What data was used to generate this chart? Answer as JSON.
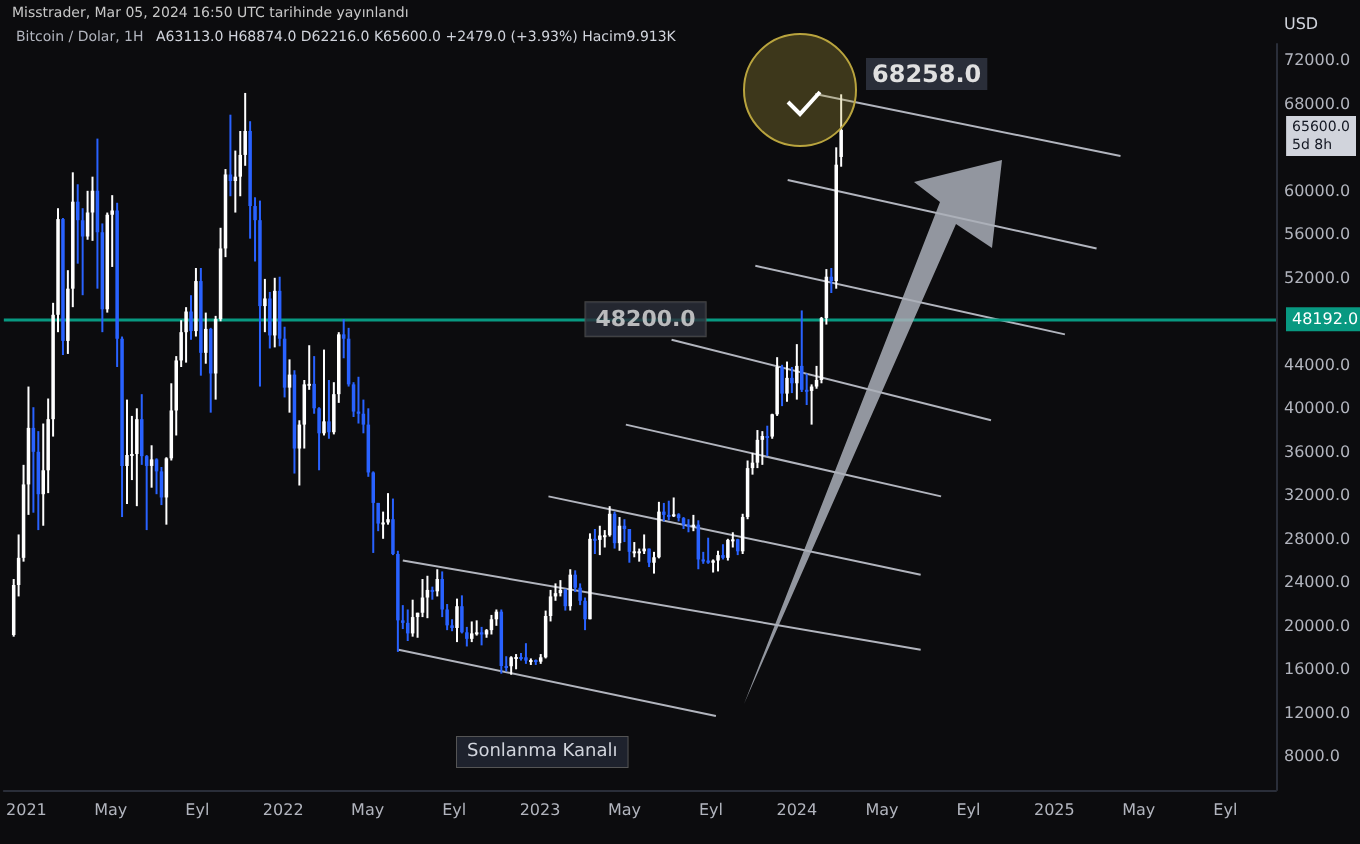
{
  "chart_data": {
    "type": "candlestick",
    "title": "Bitcoin / Dolar, 1H",
    "subtitle": "Misstrader, Mar 05, 2024 16:50 UTC tarihinde yayınlandı",
    "ylabel": "USD",
    "annotations": [
      "A63113.0 H68874.0 D62216.0 K65600.0 +2479.0 (+3.93%) Hacim9.913K",
      {
        "text": "48200.0",
        "x": "2023-05-31",
        "y": 48200
      },
      "68258.0",
      "Sonlanma Kanalı",
      "65600.0\n5d 8h"
    ],
    "colors": [
      "#ffffff",
      "#ffffff",
      "#ffffff",
      "#ffffff",
      "#2962ff",
      "#2962ff",
      "#ffffff",
      "#ffffff",
      "#ffffff",
      "#ffffff",
      "#2962ff",
      "#ffffff",
      "#ffffff",
      "#2962ff",
      "#2962ff",
      "#ffffff",
      "#ffffff",
      "#2962ff",
      "#2962ff",
      "#ffffff",
      "#ffffff",
      "#2962ff",
      "#2962ff",
      "#ffffff",
      "#ffffff",
      "#ffffff",
      "#2962ff",
      "#2962ff",
      "#ffffff",
      "#2962ff",
      "#2962ff",
      "#ffffff",
      "#ffffff",
      "#ffffff",
      "#ffffff",
      "#ffffff",
      "#2962ff",
      "#ffffff",
      "#2962ff",
      "#ffffff",
      "#2962ff",
      "#ffffff",
      "#ffffff",
      "#ffffff",
      "#2962ff",
      "#ffffff",
      "#ffffff",
      "#ffffff",
      "#2962ff",
      "#2962ff",
      "#2962ff",
      "#ffffff",
      "#2962ff",
      "#ffffff",
      "#2962ff",
      "#2962ff",
      "#ffffff",
      "#2962ff",
      "#ffffff",
      "#ffffff",
      "#ffffff",
      "#2962ff",
      "#2962ff",
      "#ffffff",
      "#2962ff",
      "#ffffff",
      "#ffffff",
      "#2962ff",
      "#2962ff",
      "#2962ff",
      "#2962ff",
      "#2962ff",
      "#2962ff",
      "#2962ff",
      "#2962ff",
      "#ffffff",
      "#ffffff",
      "#2962ff",
      "#2962ff",
      "#2962ff",
      "#2962ff",
      "#ffffff",
      "#ffffff",
      "#ffffff",
      "#ffffff",
      "#2962ff",
      "#ffffff",
      "#2962ff",
      "#2962ff",
      "#2962ff",
      "#ffffff",
      "#2962ff",
      "#2962ff",
      "#ffffff",
      "#ffffff",
      "#2962ff",
      "#ffffff",
      "#ffffff",
      "#ffffff",
      "#2962ff",
      "#2962ff",
      "#ffffff",
      "#ffffff",
      "#2962ff",
      "#2962ff",
      "#ffffff",
      "#2962ff",
      "#ffffff",
      "#ffffff",
      "#ffffff",
      "#ffffff",
      "#ffffff",
      "#2962ff",
      "#ffffff",
      "#2962ff",
      "#2962ff",
      "#2962ff",
      "#ffffff",
      "#2962ff",
      "#ffffff",
      "#ffffff",
      "#ffffff",
      "#2962ff",
      "#ffffff",
      "#2962ff",
      "#2962ff",
      "#ffffff",
      "#ffffff",
      "#ffffff",
      "#2962ff",
      "#ffffff",
      "#ffffff",
      "#2962ff",
      "#2962ff",
      "#ffffff",
      "#2962ff",
      "#2962ff",
      "#2962ff",
      "#ffffff",
      "#2962ff",
      "#2962ff",
      "#2962ff",
      "#ffffff",
      "#ffffff",
      "#2962ff",
      "#ffffff",
      "#ffffff",
      "#2962ff",
      "#ffffff",
      "#ffffff",
      "#ffffff",
      "#ffffff",
      "#ffffff",
      "#2962ff",
      "#ffffff",
      "#ffffff",
      "#2962ff",
      "#ffffff",
      "#2962ff",
      "#ffffff",
      "#2962ff",
      "#2962ff",
      "#ffffff",
      "#ffffff",
      "#ffffff",
      "#ffffff",
      "#2962ff",
      "#ffffff",
      "#ffffff"
    ],
    "x": [
      "2020-12-14",
      "2020-12-21",
      "2020-12-28",
      "2021-01-04",
      "2021-01-11",
      "2021-01-18",
      "2021-01-25",
      "2021-02-01",
      "2021-02-08",
      "2021-02-15",
      "2021-02-22",
      "2021-03-01",
      "2021-03-08",
      "2021-03-15",
      "2021-03-22",
      "2021-03-29",
      "2021-04-05",
      "2021-04-12",
      "2021-04-19",
      "2021-04-26",
      "2021-05-03",
      "2021-05-10",
      "2021-05-17",
      "2021-05-24",
      "2021-05-31",
      "2021-06-07",
      "2021-06-14",
      "2021-06-21",
      "2021-06-28",
      "2021-07-05",
      "2021-07-12",
      "2021-07-19",
      "2021-07-26",
      "2021-08-02",
      "2021-08-09",
      "2021-08-16",
      "2021-08-23",
      "2021-08-30",
      "2021-09-06",
      "2021-09-13",
      "2021-09-20",
      "2021-09-27",
      "2021-10-04",
      "2021-10-11",
      "2021-10-18",
      "2021-10-25",
      "2021-11-01",
      "2021-11-08",
      "2021-11-15",
      "2021-11-22",
      "2021-11-29",
      "2021-12-06",
      "2021-12-13",
      "2021-12-20",
      "2021-12-27",
      "2022-01-03",
      "2022-01-10",
      "2022-01-17",
      "2022-01-24",
      "2022-01-31",
      "2022-02-07",
      "2022-02-14",
      "2022-02-21",
      "2022-02-28",
      "2022-03-07",
      "2022-03-14",
      "2022-03-21",
      "2022-03-28",
      "2022-04-04",
      "2022-04-11",
      "2022-04-18",
      "2022-04-25",
      "2022-05-02",
      "2022-05-09",
      "2022-05-16",
      "2022-05-23",
      "2022-05-30",
      "2022-06-06",
      "2022-06-13",
      "2022-06-20",
      "2022-06-27",
      "2022-07-04",
      "2022-07-11",
      "2022-07-18",
      "2022-07-25",
      "2022-08-01",
      "2022-08-08",
      "2022-08-15",
      "2022-08-22",
      "2022-08-29",
      "2022-09-05",
      "2022-09-12",
      "2022-09-19",
      "2022-09-26",
      "2022-10-03",
      "2022-10-10",
      "2022-10-17",
      "2022-10-24",
      "2022-10-31",
      "2022-11-07",
      "2022-11-14",
      "2022-11-21",
      "2022-11-28",
      "2022-12-05",
      "2022-12-12",
      "2022-12-19",
      "2022-12-26",
      "2023-01-02",
      "2023-01-09",
      "2023-01-16",
      "2023-01-23",
      "2023-01-30",
      "2023-02-06",
      "2023-02-13",
      "2023-02-20",
      "2023-02-27",
      "2023-03-06",
      "2023-03-13",
      "2023-03-20",
      "2023-03-27",
      "2023-04-03",
      "2023-04-10",
      "2023-04-17",
      "2023-04-24",
      "2023-05-01",
      "2023-05-08",
      "2023-05-15",
      "2023-05-22",
      "2023-05-29",
      "2023-06-05",
      "2023-06-12",
      "2023-06-19",
      "2023-06-26",
      "2023-07-03",
      "2023-07-10",
      "2023-07-17",
      "2023-07-24",
      "2023-07-31",
      "2023-08-07",
      "2023-08-14",
      "2023-08-21",
      "2023-08-28",
      "2023-09-04",
      "2023-09-11",
      "2023-09-18",
      "2023-09-25",
      "2023-10-02",
      "2023-10-09",
      "2023-10-16",
      "2023-10-23",
      "2023-10-30",
      "2023-11-06",
      "2023-11-13",
      "2023-11-20",
      "2023-11-27",
      "2023-12-04",
      "2023-12-11",
      "2023-12-18",
      "2023-12-25",
      "2024-01-01",
      "2024-01-08",
      "2024-01-15",
      "2024-01-22",
      "2024-01-29",
      "2024-02-05",
      "2024-02-12",
      "2024-02-19",
      "2024-02-26",
      "2024-03-04"
    ],
    "ohlc": [
      [
        19150,
        24300,
        19000,
        23750
      ],
      [
        23750,
        28400,
        22700,
        26250
      ],
      [
        26250,
        34800,
        25900,
        33000
      ],
      [
        33000,
        42000,
        30200,
        38200
      ],
      [
        38200,
        40100,
        30400,
        36000
      ],
      [
        36000,
        37900,
        28800,
        32100
      ],
      [
        32100,
        38600,
        29200,
        34300
      ],
      [
        34300,
        40900,
        32200,
        39000
      ],
      [
        39000,
        49700,
        37400,
        48600
      ],
      [
        48600,
        58400,
        47000,
        57400
      ],
      [
        57400,
        57500,
        44900,
        46200
      ],
      [
        46200,
        52700,
        45000,
        51000
      ],
      [
        51000,
        61700,
        49300,
        59000
      ],
      [
        59000,
        60600,
        53300,
        57300
      ],
      [
        57300,
        58400,
        50400,
        55800
      ],
      [
        55800,
        60000,
        55500,
        58000
      ],
      [
        58000,
        61300,
        55400,
        60000
      ],
      [
        60000,
        64800,
        51000,
        56200
      ],
      [
        56200,
        57000,
        47000,
        49100
      ],
      [
        49100,
        58000,
        48800,
        57800
      ],
      [
        57800,
        59600,
        53000,
        58200
      ],
      [
        58200,
        58900,
        43800,
        46400
      ],
      [
        46400,
        46600,
        30000,
        34700
      ],
      [
        34700,
        40800,
        31200,
        35700
      ],
      [
        35700,
        39300,
        33400,
        35800
      ],
      [
        35800,
        40000,
        31000,
        39000
      ],
      [
        39000,
        41300,
        34800,
        35600
      ],
      [
        35600,
        35700,
        28800,
        34700
      ],
      [
        34700,
        36600,
        32700,
        35300
      ],
      [
        35300,
        35400,
        32100,
        34200
      ],
      [
        34200,
        34600,
        31100,
        31800
      ],
      [
        31800,
        35500,
        29300,
        35400
      ],
      [
        35400,
        42300,
        35200,
        39800
      ],
      [
        39800,
        44800,
        37500,
        44400
      ],
      [
        44400,
        48100,
        43800,
        47000
      ],
      [
        47000,
        49300,
        44200,
        48900
      ],
      [
        48900,
        50400,
        46300,
        47100
      ],
      [
        47100,
        52900,
        46600,
        51700
      ],
      [
        51700,
        52900,
        43000,
        45100
      ],
      [
        45100,
        48800,
        44100,
        47300
      ],
      [
        47300,
        47400,
        39600,
        43200
      ],
      [
        43200,
        48500,
        40800,
        48200
      ],
      [
        48200,
        56600,
        48000,
        54700
      ],
      [
        54700,
        62000,
        53900,
        61500
      ],
      [
        61500,
        67000,
        59500,
        60900
      ],
      [
        60900,
        63700,
        58000,
        61300
      ],
      [
        61300,
        65500,
        59500,
        63300
      ],
      [
        63300,
        69000,
        62300,
        65500
      ],
      [
        65500,
        66400,
        55600,
        58600
      ],
      [
        58600,
        59400,
        53500,
        57300
      ],
      [
        57300,
        59100,
        42000,
        49400
      ],
      [
        49400,
        51900,
        47000,
        50100
      ],
      [
        50100,
        50700,
        45500,
        46700
      ],
      [
        46700,
        52000,
        45600,
        50800
      ],
      [
        50800,
        52100,
        45700,
        46400
      ],
      [
        46400,
        47500,
        41000,
        41900
      ],
      [
        41900,
        44500,
        39600,
        43100
      ],
      [
        43100,
        43500,
        34000,
        36300
      ],
      [
        36300,
        38900,
        32900,
        38500
      ],
      [
        38500,
        42600,
        36300,
        42200
      ],
      [
        42200,
        45800,
        41700,
        42250
      ],
      [
        42250,
        44800,
        39500,
        40000
      ],
      [
        40000,
        40100,
        34300,
        37700
      ],
      [
        37700,
        45400,
        37500,
        38800
      ],
      [
        38800,
        42600,
        37200,
        37800
      ],
      [
        37800,
        42400,
        37600,
        41300
      ],
      [
        41300,
        47000,
        40500,
        46800
      ],
      [
        46800,
        48200,
        44600,
        46400
      ],
      [
        46400,
        47400,
        42000,
        42200
      ],
      [
        42200,
        42400,
        39200,
        39700
      ],
      [
        39700,
        42900,
        38600,
        39500
      ],
      [
        39500,
        40800,
        37700,
        38500
      ],
      [
        38500,
        40000,
        33700,
        34100
      ],
      [
        34100,
        34200,
        26700,
        31300
      ],
      [
        31300,
        31300,
        28700,
        29400
      ],
      [
        29400,
        30500,
        28000,
        29500
      ],
      [
        29500,
        32200,
        29300,
        29800
      ],
      [
        29800,
        31700,
        26500,
        26600
      ],
      [
        26600,
        26900,
        17600,
        20500
      ],
      [
        20500,
        21900,
        19700,
        20270
      ],
      [
        20270,
        21500,
        18600,
        19300
      ],
      [
        19300,
        22400,
        19000,
        20800
      ],
      [
        20800,
        21200,
        18900,
        21200
      ],
      [
        21200,
        24300,
        20800,
        22600
      ],
      [
        22600,
        24600,
        20700,
        23300
      ],
      [
        23300,
        23600,
        22400,
        23170
      ],
      [
        23170,
        25200,
        22700,
        24300
      ],
      [
        24300,
        25000,
        20800,
        21500
      ],
      [
        21500,
        22000,
        19600,
        20040
      ],
      [
        20040,
        20600,
        19500,
        19800
      ],
      [
        19800,
        22500,
        18500,
        21800
      ],
      [
        21800,
        22800,
        19300,
        19400
      ],
      [
        19400,
        19900,
        18100,
        18800
      ],
      [
        18800,
        20400,
        18500,
        19300
      ],
      [
        19300,
        20500,
        19100,
        19400
      ],
      [
        19400,
        19900,
        18200,
        19200
      ],
      [
        19200,
        19700,
        18900,
        19600
      ],
      [
        19600,
        21000,
        19200,
        20600
      ],
      [
        20600,
        21500,
        20000,
        21300
      ],
      [
        21300,
        21500,
        15600,
        16300
      ],
      [
        16300,
        17200,
        15800,
        16280
      ],
      [
        16280,
        17200,
        15500,
        17100
      ],
      [
        17100,
        17400,
        16000,
        17130
      ],
      [
        17130,
        17500,
        16800,
        17100
      ],
      [
        17100,
        18400,
        16500,
        16800
      ],
      [
        16800,
        17000,
        16400,
        16850
      ],
      [
        16850,
        16900,
        16400,
        16700
      ],
      [
        16700,
        17400,
        16500,
        17100
      ],
      [
        17100,
        21400,
        17000,
        20900
      ],
      [
        20900,
        23300,
        20400,
        22700
      ],
      [
        22700,
        23900,
        22300,
        23000
      ],
      [
        23000,
        24200,
        22700,
        23300
      ],
      [
        23300,
        23400,
        21400,
        21800
      ],
      [
        21800,
        25200,
        21400,
        24700
      ],
      [
        24700,
        25100,
        23100,
        23500
      ],
      [
        23500,
        23900,
        21900,
        22300
      ],
      [
        22300,
        22600,
        19600,
        20600
      ],
      [
        20600,
        28500,
        20600,
        28000
      ],
      [
        28000,
        28900,
        26600,
        27900
      ],
      [
        27900,
        29200,
        26500,
        28300
      ],
      [
        28300,
        28800,
        27200,
        28330
      ],
      [
        28330,
        31000,
        28200,
        30300
      ],
      [
        30300,
        30500,
        27100,
        27600
      ],
      [
        27600,
        30000,
        26900,
        29200
      ],
      [
        29200,
        29800,
        27700,
        28900
      ],
      [
        28900,
        28900,
        25800,
        26800
      ],
      [
        26800,
        27700,
        26300,
        26850
      ],
      [
        26850,
        27100,
        25900,
        26850
      ],
      [
        26850,
        28400,
        26600,
        27100
      ],
      [
        27100,
        27100,
        25400,
        25800
      ],
      [
        25800,
        26800,
        24800,
        26300
      ],
      [
        26300,
        31400,
        26200,
        30500
      ],
      [
        30500,
        31300,
        29600,
        30200
      ],
      [
        30200,
        31500,
        29700,
        30150
      ],
      [
        30150,
        31800,
        30000,
        30250
      ],
      [
        30250,
        30350,
        29600,
        29900
      ],
      [
        29900,
        30000,
        28900,
        29300
      ],
      [
        29300,
        29800,
        28600,
        29100
      ],
      [
        29100,
        30200,
        28700,
        29300
      ],
      [
        29300,
        29700,
        25200,
        26100
      ],
      [
        26100,
        26800,
        25700,
        26000
      ],
      [
        26000,
        28100,
        25700,
        25800
      ],
      [
        25800,
        26100,
        24900,
        26000
      ],
      [
        26000,
        26900,
        25000,
        26500
      ],
      [
        26500,
        27500,
        26100,
        26250
      ],
      [
        26250,
        28000,
        26000,
        27900
      ],
      [
        27900,
        28600,
        27200,
        27950
      ],
      [
        27950,
        28000,
        26500,
        26850
      ],
      [
        26850,
        30300,
        26600,
        30000
      ],
      [
        30000,
        35200,
        29800,
        34500
      ],
      [
        34500,
        35900,
        33900,
        35000
      ],
      [
        35000,
        38000,
        34500,
        37100
      ],
      [
        37100,
        37900,
        34800,
        37450
      ],
      [
        37450,
        38400,
        35600,
        37400
      ],
      [
        37400,
        39500,
        37200,
        39450
      ],
      [
        39450,
        44700,
        39300,
        43800
      ],
      [
        43800,
        44000,
        40200,
        41350
      ],
      [
        41350,
        44300,
        40600,
        42800
      ],
      [
        42800,
        43800,
        41400,
        42300
      ],
      [
        42300,
        45900,
        40800,
        43900
      ],
      [
        43900,
        49000,
        41500,
        41700
      ],
      [
        41700,
        43200,
        40300,
        41600
      ],
      [
        41600,
        42200,
        38500,
        42000
      ],
      [
        42000,
        43900,
        41800,
        42600
      ],
      [
        42600,
        48400,
        42300,
        48300
      ],
      [
        48300,
        52800,
        47700,
        52100
      ],
      [
        52100,
        52900,
        50600,
        51700
      ],
      [
        51700,
        64000,
        51000,
        62400
      ],
      [
        63113,
        68874,
        62216,
        65600
      ]
    ],
    "series": [
      {
        "type": "line",
        "color": "#b2b5be",
        "x": [
          "2024-01-27",
          "2025-04-05"
        ],
        "values": [
          68900,
          63200
        ]
      },
      {
        "type": "line",
        "color": "#b2b5be",
        "x": [
          "2023-12-19",
          "2025-03-02"
        ],
        "values": [
          61000,
          54700
        ]
      },
      {
        "type": "line",
        "color": "#b2b5be",
        "x": [
          "2023-11-03",
          "2025-01-16"
        ],
        "values": [
          53100,
          46800
        ]
      },
      {
        "type": "line",
        "color": "#b2b5be",
        "x": [
          "2023-07-07",
          "2024-10-03"
        ],
        "values": [
          46300,
          38900
        ]
      },
      {
        "type": "line",
        "color": "#b2b5be",
        "x": [
          "2023-05-03",
          "2024-07-24"
        ],
        "values": [
          38500,
          31900
        ]
      },
      {
        "type": "line",
        "color": "#b2b5be",
        "x": [
          "2023-01-13",
          "2024-06-25"
        ],
        "values": [
          31900,
          24700
        ]
      },
      {
        "type": "line",
        "color": "#b2b5be",
        "x": [
          "2022-06-20",
          "2024-06-25"
        ],
        "values": [
          26000,
          17800
        ]
      },
      {
        "type": "line",
        "color": "#b2b5be",
        "x": [
          "2022-06-14",
          "2023-09-08"
        ],
        "values": [
          17800,
          11700
        ]
      }
    ],
    "marker": "none",
    "ref_lines": [
      {
        "axis": "y",
        "value": 48192,
        "label": "48192.0",
        "color": "#089981"
      }
    ],
    "xlim": [
      "2020-11-30",
      "2025-11-12"
    ],
    "xticks": [
      {
        "value": "2021-01",
        "label": "2021"
      },
      {
        "value": "2021-05",
        "label": "May"
      },
      {
        "value": "2021-09",
        "label": "Eyl"
      },
      {
        "value": "2022-01",
        "label": "2022"
      },
      {
        "value": "2022-05",
        "label": "May"
      },
      {
        "value": "2022-09",
        "label": "Eyl"
      },
      {
        "value": "2023-01",
        "label": "2023"
      },
      {
        "value": "2023-05",
        "label": "May"
      },
      {
        "value": "2023-09",
        "label": "Eyl"
      },
      {
        "value": "2024-01",
        "label": "2024"
      },
      {
        "value": "2024-05",
        "label": "May"
      },
      {
        "value": "2024-09",
        "label": "Eyl"
      },
      {
        "value": "2025-01",
        "label": "2025"
      },
      {
        "value": "2025-05",
        "label": "May"
      },
      {
        "value": "2025-09",
        "label": "Eyl"
      }
    ],
    "ylim": [
      4900,
      73500
    ],
    "yticks": [
      {
        "value": 8000,
        "label": "8000.0"
      },
      {
        "value": 12000,
        "label": "12000.0"
      },
      {
        "value": 16000,
        "label": "16000.0"
      },
      {
        "value": 20000,
        "label": "20000.0"
      },
      {
        "value": 24000,
        "label": "24000.0"
      },
      {
        "value": 28000,
        "label": "28000.0"
      },
      {
        "value": 32000,
        "label": "32000.0"
      },
      {
        "value": 36000,
        "label": "36000.0"
      },
      {
        "value": 40000,
        "label": "40000.0"
      },
      {
        "value": 44000,
        "label": "44000.0"
      },
      {
        "value": 52000,
        "label": "52000.0"
      },
      {
        "value": 56000,
        "label": "56000.0"
      },
      {
        "value": 60000,
        "label": "60000.0"
      },
      {
        "value": 68000,
        "label": "68000.0"
      },
      {
        "value": 72000,
        "label": "72000.0"
      }
    ]
  }
}
